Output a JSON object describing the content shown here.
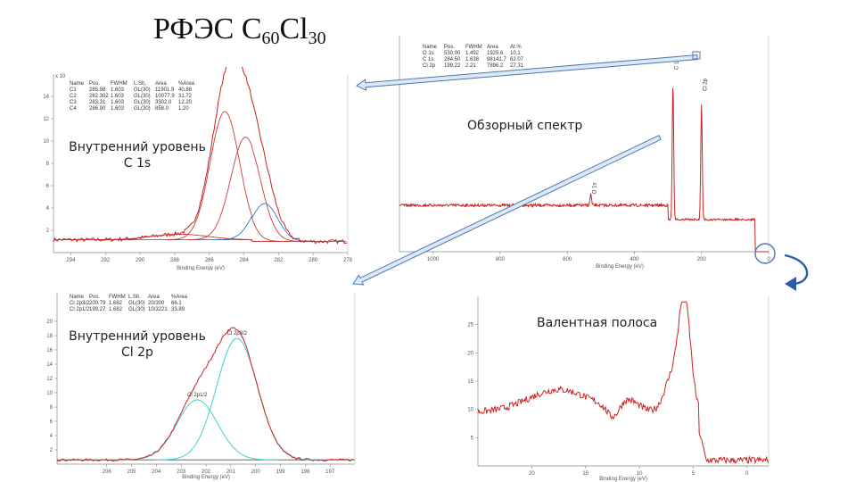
{
  "slide": {
    "title_base": "РФЭС C",
    "title_sub1": "60",
    "title_mid": "Cl",
    "title_sub2": "30"
  },
  "labels": {
    "c1s": "Внутренний уровень\nC 1s",
    "cl2p": "Внутренний уровень\nCl 2p",
    "survey": "Обзорный спектр",
    "valence": "Валентная полоса"
  },
  "colors": {
    "envelope": "#cc2222",
    "component_red": "#d03a3a",
    "component_blue": "#3377cc",
    "component_cyan": "#33cccc",
    "background": "#555555",
    "arrow_fill": "#dce8f4",
    "arrow_stroke": "#4a78b0",
    "curved_arrow": "#2e5aa8"
  },
  "chart_data": [
    {
      "type": "line",
      "name": "C 1s",
      "x_reversed": true,
      "xlim": [
        295,
        278
      ],
      "xticks": [
        294,
        292,
        290,
        288,
        286,
        284,
        282,
        280,
        278
      ],
      "ylim": [
        0,
        16
      ],
      "yticks": [
        2,
        4,
        6,
        8,
        10,
        12,
        14
      ],
      "xlabel": "Binding Energy (eV)",
      "table_header": [
        "Name",
        "Pos.",
        "FWHM",
        "L.Sh.",
        "Area",
        "%Area"
      ],
      "table_rows": [
        [
          "C1",
          "285.98",
          "1.603",
          "GL(30)",
          "11901.9",
          "40.88"
        ],
        [
          "C2",
          "282.302",
          "1.603",
          "GL(30)",
          "10077.9",
          "31.72"
        ],
        [
          "C3",
          "283.31",
          "1.603",
          "GL(30)",
          "3302.0",
          "12.20"
        ],
        [
          "C4",
          "286.90",
          "1.603",
          "GL(30)",
          "858.0",
          "1.20"
        ]
      ],
      "components": [
        {
          "center": 285.1,
          "height": 11.5,
          "width": 0.85,
          "color": "component_red"
        },
        {
          "center": 283.9,
          "height": 9.2,
          "width": 0.85,
          "color": "component_red"
        },
        {
          "center": 282.8,
          "height": 3.4,
          "width": 0.75,
          "color": "component_blue"
        },
        {
          "center": 287.7,
          "height": 0.5,
          "width": 1.6,
          "color": "component_red"
        }
      ],
      "background_level": 1.0
    },
    {
      "type": "line",
      "name": "Cl 2p",
      "x_reversed": true,
      "xlim": [
        208,
        196
      ],
      "ylim": [
        0,
        24
      ],
      "yticks": [
        2,
        4,
        6,
        8,
        10,
        12,
        14,
        16,
        18,
        20
      ],
      "xlabel": "Binding Energy (eV)",
      "table_header": [
        "Name",
        "Pos.",
        "FWHM",
        "L.Sh.",
        "Area",
        "%Area"
      ],
      "table_rows": [
        [
          "Cl 2p3/2",
          "200.79",
          "1.682",
          "GL(30)",
          "20/300",
          "66.1"
        ],
        [
          "Cl 2p1/2",
          "199.27",
          "1.682",
          "GL(30)",
          "10/3221",
          "33.89"
        ]
      ],
      "components": [
        {
          "center": 200.75,
          "height": 17.0,
          "width": 0.82,
          "color": "component_cyan"
        },
        {
          "center": 202.35,
          "height": 8.4,
          "width": 0.82,
          "color": "component_cyan"
        }
      ],
      "background_level": 0.6
    },
    {
      "type": "line",
      "name": "Обзорный спектр",
      "x_reversed": true,
      "xlim": [
        1100,
        0
      ],
      "xticks": [
        1000,
        800,
        600,
        400,
        200,
        0
      ],
      "xlabel": "Binding Energy (eV)",
      "table_header": [
        "Name",
        "Pos.",
        "FWHM",
        "Area",
        "At.%"
      ],
      "table_rows": [
        [
          "O 1s",
          "530.00",
          "1.492",
          "1925.6",
          "10.1"
        ],
        [
          "C 1s",
          "284.50",
          "1.638",
          "98141.7",
          "62.07"
        ],
        [
          "Cl 2p",
          "199.22",
          "2.21",
          "7896.2",
          "27.31"
        ]
      ],
      "peaks": [
        {
          "label": "Cl 2p",
          "x": 200,
          "height": 0.8
        },
        {
          "label": "C 1s",
          "x": 285,
          "height": 0.95
        },
        {
          "label": "O 1s",
          "x": 530,
          "height": 0.08
        }
      ]
    },
    {
      "type": "line",
      "name": "Валентная полоса",
      "x_reversed": true,
      "xlim": [
        25,
        -2
      ],
      "xticks": [
        20,
        15,
        10,
        5,
        0
      ],
      "ylim": [
        0,
        30
      ],
      "yticks": [
        5,
        10,
        15,
        20,
        25
      ],
      "xlabel": "Binding Energy (eV)"
    }
  ]
}
